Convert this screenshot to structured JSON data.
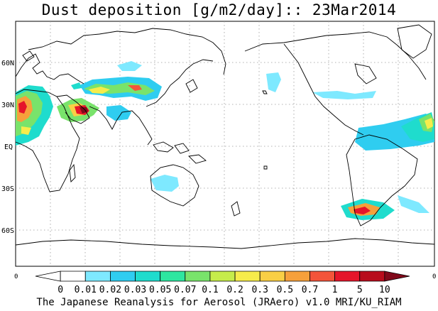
{
  "title": "Dust deposition [g/m2/day]:: 23Mar2014",
  "footer": "The Japanese Reanalysis for Aerosol (JRAero) v1.0 MRI/KU_RIAM",
  "lat_labels": [
    "60N",
    "30N",
    "EQ",
    "30S",
    "60S"
  ],
  "edge_labels": {
    "left": "0",
    "right": "0"
  },
  "colorbar": {
    "labels": [
      "0",
      "0.01",
      "0.02",
      "0.03",
      "0.05",
      "0.07",
      "0.1",
      "0.2",
      "0.3",
      "0.5",
      "0.7",
      "1",
      "5",
      "10"
    ],
    "colors": [
      "#ffffff",
      "#ffffff",
      "#7ee9ff",
      "#2fcdf0",
      "#1fdccd",
      "#2ee6a0",
      "#79e36b",
      "#c6ec4b",
      "#f6ec4b",
      "#f9cf45",
      "#f6a03b",
      "#f4543a",
      "#e5152a",
      "#b80c1c",
      "#80081a"
    ]
  }
}
